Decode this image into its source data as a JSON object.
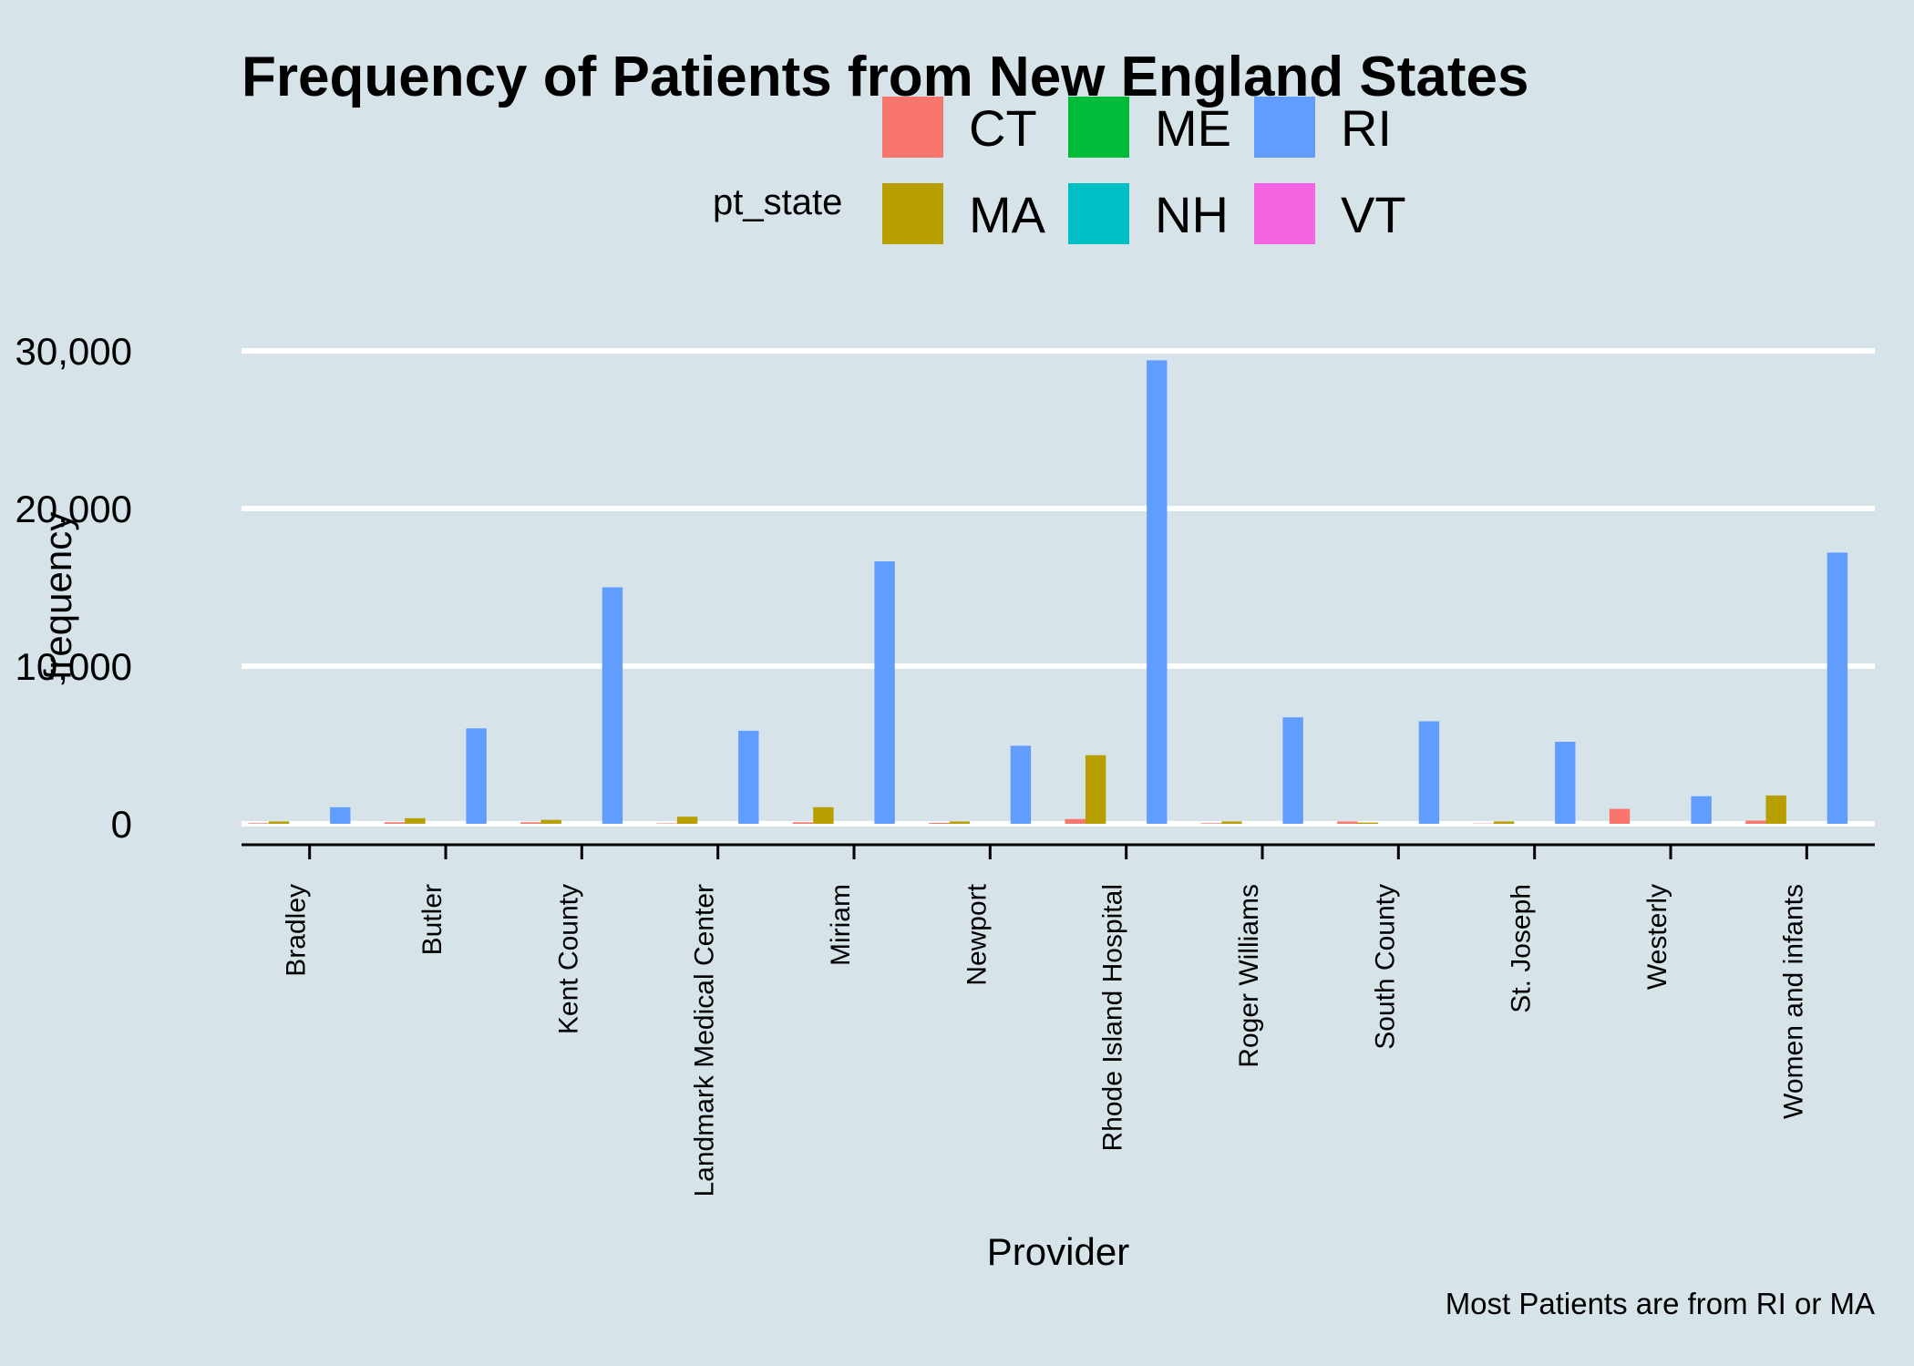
{
  "chart_data": {
    "type": "bar",
    "title": "Frequency of Patients from New England States",
    "xlabel": "Provider",
    "ylabel": "frequency",
    "caption": "Most Patients are from RI or MA",
    "legend": {
      "title": "pt_state",
      "position": "top"
    },
    "ylim": [
      -1300,
      30000
    ],
    "yticks": [
      0,
      10000,
      20000,
      30000
    ],
    "ytick_labels": [
      "0",
      "10,000",
      "20,000",
      "30,000"
    ],
    "grid": "horizontal",
    "categories": [
      "Bradley",
      "Butler",
      "Kent County",
      "Landmark Medical Center",
      "Miriam",
      "Newport",
      "Rhode Island Hospital",
      "Roger Williams",
      "South County",
      "St. Joseph",
      "Westerly",
      "Women and infants"
    ],
    "series": [
      {
        "name": "CT",
        "color": "#f8766d",
        "values": [
          40,
          100,
          100,
          30,
          100,
          60,
          300,
          40,
          150,
          20,
          950,
          200
        ]
      },
      {
        "name": "MA",
        "color": "#b79f00",
        "values": [
          150,
          350,
          250,
          450,
          1050,
          150,
          4350,
          150,
          80,
          150,
          0,
          1800
        ]
      },
      {
        "name": "ME",
        "color": "#00ba38",
        "values": [
          0,
          0,
          0,
          0,
          0,
          0,
          0,
          0,
          0,
          0,
          0,
          0
        ]
      },
      {
        "name": "NH",
        "color": "#00bfc4",
        "values": [
          0,
          0,
          0,
          0,
          0,
          0,
          0,
          0,
          0,
          0,
          0,
          0
        ]
      },
      {
        "name": "RI",
        "color": "#619cff",
        "values": [
          1050,
          6050,
          15000,
          5900,
          16650,
          4950,
          29400,
          6750,
          6500,
          5200,
          1750,
          17200
        ]
      },
      {
        "name": "VT",
        "color": "#f564e3",
        "values": [
          0,
          0,
          0,
          0,
          0,
          0,
          0,
          0,
          0,
          0,
          0,
          0
        ]
      }
    ]
  }
}
